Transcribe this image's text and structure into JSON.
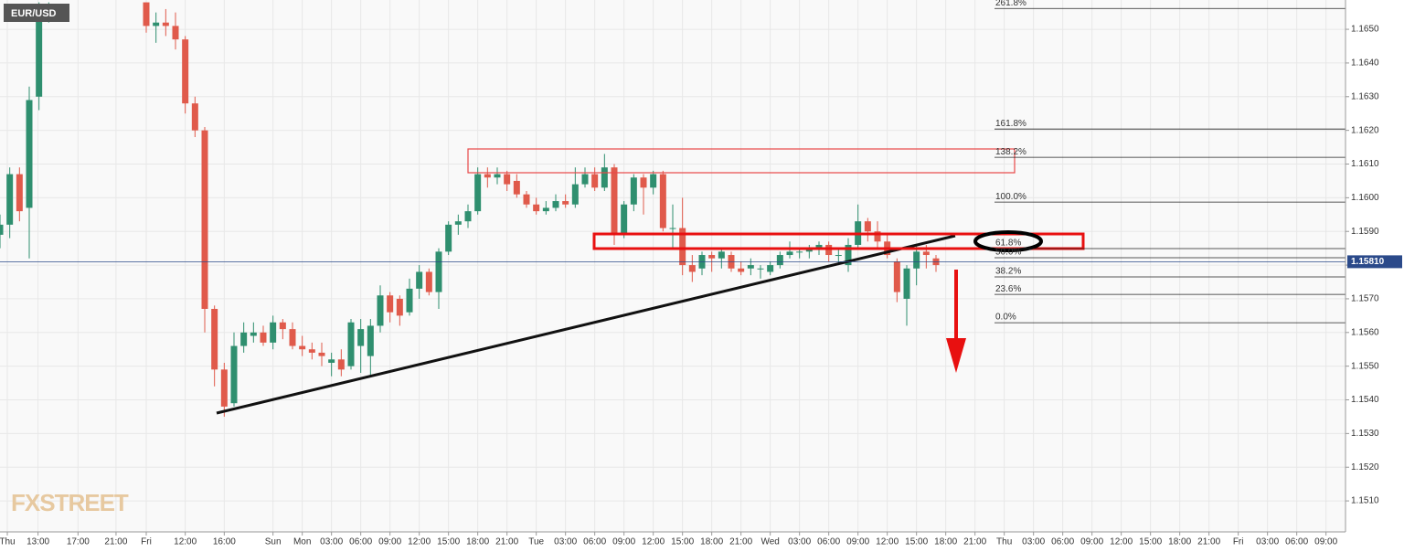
{
  "chart_data": {
    "type": "candlestick",
    "symbol": "EUR/USD",
    "watermark": "FXSTREET",
    "up_color": "#2f8f6f",
    "down_color": "#e05a4b",
    "grid": true,
    "xlim": [
      0,
      138
    ],
    "ylim": [
      1.15008,
      1.16587
    ],
    "xticks": [
      {
        "value": 0.75,
        "label": "Thu"
      },
      {
        "value": 3.9,
        "label": "13:00"
      },
      {
        "value": 8,
        "label": "17:00"
      },
      {
        "value": 11.9,
        "label": "21:00"
      },
      {
        "value": 15,
        "label": "Fri"
      },
      {
        "value": 19,
        "label": "12:00"
      },
      {
        "value": 23,
        "label": "16:00"
      },
      {
        "value": 28,
        "label": "Sun"
      },
      {
        "value": 31,
        "label": "Mon"
      },
      {
        "value": 34,
        "label": "03:00"
      },
      {
        "value": 37,
        "label": "06:00"
      },
      {
        "value": 40,
        "label": "09:00"
      },
      {
        "value": 43,
        "label": "12:00"
      },
      {
        "value": 46,
        "label": "15:00"
      },
      {
        "value": 49,
        "label": "18:00"
      },
      {
        "value": 52,
        "label": "21:00"
      },
      {
        "value": 55,
        "label": "Tue"
      },
      {
        "value": 58,
        "label": "03:00"
      },
      {
        "value": 61,
        "label": "06:00"
      },
      {
        "value": 64,
        "label": "09:00"
      },
      {
        "value": 67,
        "label": "12:00"
      },
      {
        "value": 70,
        "label": "15:00"
      },
      {
        "value": 73,
        "label": "18:00"
      },
      {
        "value": 76,
        "label": "21:00"
      },
      {
        "value": 79,
        "label": "Wed"
      },
      {
        "value": 82,
        "label": "03:00"
      },
      {
        "value": 85,
        "label": "06:00"
      },
      {
        "value": 88,
        "label": "09:00"
      },
      {
        "value": 91,
        "label": "12:00"
      },
      {
        "value": 94,
        "label": "15:00"
      },
      {
        "value": 97,
        "label": "18:00"
      },
      {
        "value": 100,
        "label": "21:00"
      },
      {
        "value": 103,
        "label": "Thu"
      },
      {
        "value": 106,
        "label": "03:00"
      },
      {
        "value": 109,
        "label": "06:00"
      },
      {
        "value": 112,
        "label": "09:00"
      },
      {
        "value": 115,
        "label": "12:00"
      },
      {
        "value": 118,
        "label": "15:00"
      },
      {
        "value": 121,
        "label": "18:00"
      },
      {
        "value": 124,
        "label": "21:00"
      },
      {
        "value": 127,
        "label": "Fri"
      },
      {
        "value": 130,
        "label": "03:00"
      },
      {
        "value": 133,
        "label": "06:00"
      },
      {
        "value": 136,
        "label": "09:00"
      }
    ],
    "yticks": [
      {
        "value": 1.151,
        "label": "1.1510"
      },
      {
        "value": 1.152,
        "label": "1.1520"
      },
      {
        "value": 1.153,
        "label": "1.1530"
      },
      {
        "value": 1.154,
        "label": "1.1540"
      },
      {
        "value": 1.155,
        "label": "1.1550"
      },
      {
        "value": 1.156,
        "label": "1.1560"
      },
      {
        "value": 1.157,
        "label": "1.1570"
      },
      {
        "value": 1.158,
        "label": "1.1580"
      },
      {
        "value": 1.159,
        "label": "1.1590"
      },
      {
        "value": 1.16,
        "label": "1.1600"
      },
      {
        "value": 1.161,
        "label": "1.1610"
      },
      {
        "value": 1.162,
        "label": "1.1620"
      },
      {
        "value": 1.163,
        "label": "1.1630"
      },
      {
        "value": 1.164,
        "label": "1.1640"
      },
      {
        "value": 1.165,
        "label": "1.1650"
      }
    ],
    "last_price": {
      "value": 1.1581,
      "label": "1.15810"
    },
    "fib_levels": [
      {
        "label": "261.8%",
        "price": 1.16562
      },
      {
        "label": "161.8%",
        "price": 1.16204
      },
      {
        "label": "138.2%",
        "price": 1.1612
      },
      {
        "label": "100.0%",
        "price": 1.15987
      },
      {
        "label": "61.8%",
        "price": 1.15849
      },
      {
        "label": "50.0%",
        "price": 1.15822
      },
      {
        "label": "38.2%",
        "price": 1.15765
      },
      {
        "label": "23.6%",
        "price": 1.15713
      },
      {
        "label": "0.0%",
        "price": 1.15629
      }
    ],
    "x": [
      0,
      1,
      2,
      3,
      4,
      5,
      15,
      16,
      17,
      18,
      19,
      20,
      21,
      22,
      23,
      24,
      25,
      26,
      27,
      28,
      29,
      30,
      31,
      32,
      33,
      34,
      35,
      36,
      37,
      38,
      39,
      40,
      41,
      42,
      43,
      44,
      45,
      46,
      47,
      48,
      49,
      50,
      51,
      52,
      53,
      54,
      55,
      56,
      57,
      58,
      59,
      60,
      61,
      62,
      63,
      64,
      65,
      66,
      67,
      68,
      69,
      70,
      71,
      72,
      73,
      74,
      75,
      76,
      77,
      78,
      79,
      80,
      81,
      82,
      83,
      84,
      85,
      86,
      87,
      88,
      89,
      90,
      91,
      92,
      93,
      94,
      95,
      96
    ],
    "open": [
      1.1589,
      1.1592,
      1.1607,
      1.1597,
      1.163,
      1.1656,
      1.1658,
      1.1651,
      1.1652,
      1.1651,
      1.1647,
      1.1628,
      1.162,
      1.1567,
      1.1549,
      1.1539,
      1.1556,
      1.1559,
      1.156,
      1.1557,
      1.1563,
      1.1561,
      1.1556,
      1.1555,
      1.1554,
      1.1551,
      1.1552,
      1.155,
      1.1556,
      1.1553,
      1.1562,
      1.1571,
      1.157,
      1.1566,
      1.1573,
      1.1578,
      1.1572,
      1.1584,
      1.1592,
      1.1593,
      1.1596,
      1.1607,
      1.1606,
      1.1607,
      1.1605,
      1.1601,
      1.1598,
      1.1596,
      1.1597,
      1.1599,
      1.1598,
      1.1604,
      1.1607,
      1.1603,
      1.1609,
      1.1589,
      1.1598,
      1.1606,
      1.1603,
      1.1607,
      1.1591,
      1.1591,
      1.158,
      1.1579,
      1.1583,
      1.1582,
      1.1583,
      1.1579,
      1.1579,
      1.1579,
      1.1578,
      1.158,
      1.1583,
      1.1584,
      1.1584,
      1.1585,
      1.1586,
      1.1583,
      1.158,
      1.1586,
      1.1593,
      1.159,
      1.1587,
      1.1581,
      1.157,
      1.1579,
      1.1584,
      1.1582
    ],
    "high": [
      1.1595,
      1.1609,
      1.1609,
      1.1633,
      1.1658,
      1.1658,
      1.1658,
      1.1655,
      1.1656,
      1.1655,
      1.1648,
      1.163,
      1.1621,
      1.1568,
      1.1551,
      1.156,
      1.1563,
      1.1563,
      1.1562,
      1.1565,
      1.1564,
      1.1563,
      1.1559,
      1.1557,
      1.1557,
      1.1554,
      1.1555,
      1.1564,
      1.1564,
      1.1564,
      1.1574,
      1.1572,
      1.1571,
      1.1576,
      1.158,
      1.1579,
      1.1585,
      1.1593,
      1.1595,
      1.1598,
      1.1609,
      1.1609,
      1.1609,
      1.1608,
      1.1607,
      1.1602,
      1.16,
      1.1599,
      1.1601,
      1.1601,
      1.1609,
      1.1609,
      1.1609,
      1.1613,
      1.161,
      1.1599,
      1.1607,
      1.1607,
      1.1608,
      1.1608,
      1.1598,
      1.16,
      1.1583,
      1.1584,
      1.1584,
      1.1585,
      1.1584,
      1.1581,
      1.1582,
      1.158,
      1.1581,
      1.1584,
      1.1587,
      1.1585,
      1.1586,
      1.1587,
      1.1587,
      1.1585,
      1.1588,
      1.1598,
      1.1594,
      1.1593,
      1.1589,
      1.1582,
      1.158,
      1.1586,
      1.1586,
      1.1583
    ],
    "low": [
      1.1585,
      1.1588,
      1.1593,
      1.1582,
      1.1626,
      1.1652,
      1.1649,
      1.1646,
      1.1648,
      1.1644,
      1.1625,
      1.1618,
      1.156,
      1.1544,
      1.1535,
      1.1538,
      1.1554,
      1.1557,
      1.1556,
      1.1555,
      1.1558,
      1.1555,
      1.1553,
      1.1552,
      1.155,
      1.1547,
      1.1547,
      1.1549,
      1.1548,
      1.1547,
      1.156,
      1.1563,
      1.1562,
      1.1565,
      1.157,
      1.1571,
      1.1567,
      1.1583,
      1.1589,
      1.1591,
      1.1595,
      1.1603,
      1.1604,
      1.1602,
      1.16,
      1.1597,
      1.1595,
      1.1595,
      1.1596,
      1.1597,
      1.1597,
      1.1603,
      1.1602,
      1.1602,
      1.1586,
      1.1588,
      1.1596,
      1.1595,
      1.1601,
      1.159,
      1.1585,
      1.1577,
      1.1575,
      1.1577,
      1.1578,
      1.1579,
      1.1578,
      1.1577,
      1.1577,
      1.1576,
      1.1577,
      1.1579,
      1.1582,
      1.1582,
      1.1582,
      1.1583,
      1.1581,
      1.158,
      1.1578,
      1.1585,
      1.1587,
      1.1585,
      1.1582,
      1.1569,
      1.1562,
      1.1574,
      1.1579,
      1.1578
    ],
    "close": [
      1.1592,
      1.1607,
      1.1596,
      1.1629,
      1.1656,
      1.1657,
      1.1651,
      1.1652,
      1.1651,
      1.1647,
      1.1628,
      1.162,
      1.1567,
      1.1549,
      1.1538,
      1.1556,
      1.156,
      1.156,
      1.1557,
      1.1563,
      1.1561,
      1.1556,
      1.1555,
      1.1554,
      1.1553,
      1.1552,
      1.1549,
      1.1563,
      1.1561,
      1.1562,
      1.1571,
      1.1566,
      1.1565,
      1.1573,
      1.1578,
      1.1572,
      1.1584,
      1.1592,
      1.1593,
      1.1596,
      1.1607,
      1.1606,
      1.1607,
      1.1604,
      1.1601,
      1.1598,
      1.1596,
      1.1597,
      1.1599,
      1.1598,
      1.1604,
      1.1607,
      1.1603,
      1.1609,
      1.1589,
      1.1598,
      1.1606,
      1.1603,
      1.1607,
      1.1591,
      1.1591,
      1.158,
      1.1578,
      1.1583,
      1.1582,
      1.1584,
      1.1579,
      1.1578,
      1.158,
      1.1579,
      1.158,
      1.1583,
      1.1584,
      1.1584,
      1.1585,
      1.1586,
      1.1583,
      1.1583,
      1.1586,
      1.1593,
      1.159,
      1.1587,
      1.1583,
      1.1572,
      1.1579,
      1.1584,
      1.1583,
      1.158
    ]
  }
}
